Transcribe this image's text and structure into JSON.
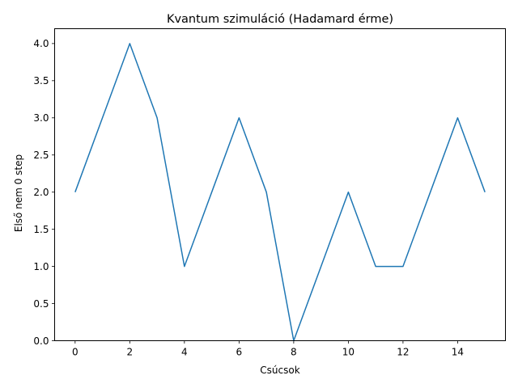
{
  "chart_data": {
    "type": "line",
    "title": "Kvantum szimuláció (Hadamard érme)",
    "xlabel": "Csúcsok",
    "ylabel": "Első nem 0 step",
    "x": [
      0,
      1,
      2,
      3,
      4,
      5,
      6,
      7,
      8,
      9,
      10,
      11,
      12,
      13,
      14,
      15
    ],
    "series": [
      {
        "values": [
          2,
          3,
          4,
          3,
          1,
          2,
          3,
          2,
          0,
          1,
          2,
          1,
          1,
          2,
          3,
          2
        ],
        "color": "#1f77b4"
      }
    ],
    "xlim": [
      -0.75,
      15.75
    ],
    "ylim": [
      0,
      4.2
    ],
    "xticks": [
      0,
      2,
      4,
      6,
      8,
      10,
      12,
      14
    ],
    "xtick_labels": [
      "0",
      "2",
      "4",
      "6",
      "8",
      "10",
      "12",
      "14"
    ],
    "yticks": [
      0,
      0.5,
      1,
      1.5,
      2,
      2.5,
      3,
      3.5,
      4
    ],
    "ytick_labels": [
      "0.0",
      "0.5",
      "1.0",
      "1.5",
      "2.0",
      "2.5",
      "3.0",
      "3.5",
      "4.0"
    ],
    "grid": false,
    "legend": false
  }
}
